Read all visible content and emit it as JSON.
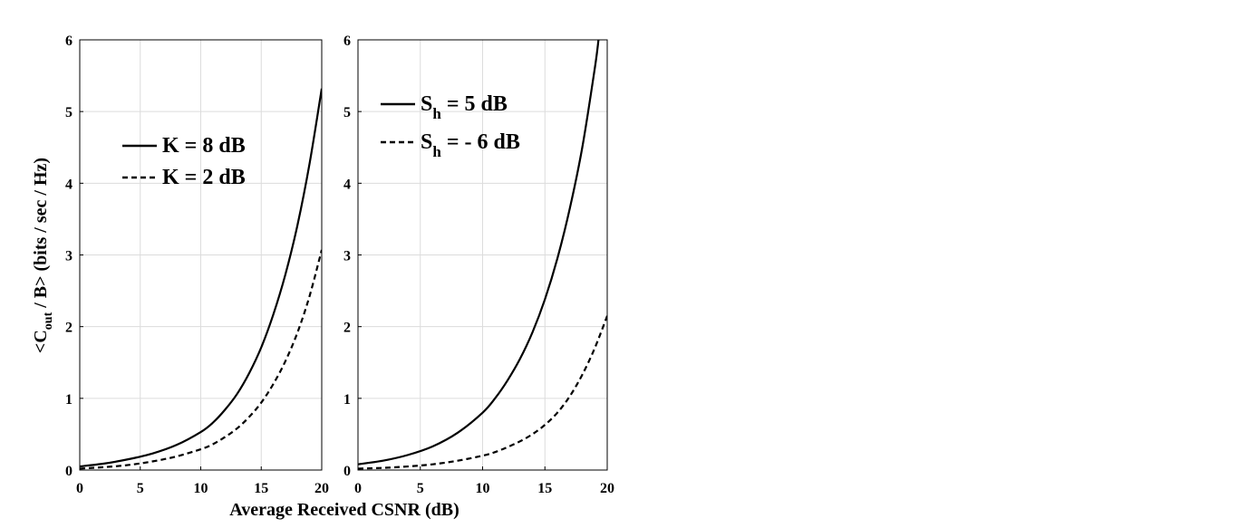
{
  "chart_data": [
    {
      "type": "line",
      "xlabel": "Average Received CSNR (dB)",
      "ylabel": {
        "prefix": "<C",
        "sub": "out",
        "suffix": " / B> (bits / sec / Hz)"
      },
      "xlim": [
        0,
        20
      ],
      "ylim": [
        0,
        6
      ],
      "xticks": [
        "0",
        "5",
        "10",
        "15",
        "20"
      ],
      "yticks": [
        "0",
        "1",
        "2",
        "3",
        "4",
        "5",
        "6"
      ],
      "grid": true,
      "legend_position": "upper-left",
      "series": [
        {
          "name": {
            "main": "K = 8 dB",
            "sub": ""
          },
          "style": "solid",
          "color": "#000000",
          "x": [
            0,
            2,
            4,
            6,
            8,
            10,
            11,
            12,
            13,
            14,
            15,
            16,
            17,
            18,
            19,
            20
          ],
          "y": [
            0.05,
            0.09,
            0.15,
            0.23,
            0.35,
            0.53,
            0.66,
            0.84,
            1.06,
            1.35,
            1.71,
            2.17,
            2.73,
            3.42,
            4.28,
            5.32
          ]
        },
        {
          "name": {
            "main": "K = 2 dB",
            "sub": ""
          },
          "style": "dashed",
          "color": "#000000",
          "x": [
            0,
            2,
            4,
            6,
            8,
            10,
            11,
            12,
            13,
            14,
            15,
            16,
            17,
            18,
            19,
            20
          ],
          "y": [
            0.02,
            0.04,
            0.07,
            0.12,
            0.19,
            0.29,
            0.36,
            0.46,
            0.58,
            0.74,
            0.94,
            1.2,
            1.52,
            1.92,
            2.43,
            3.07
          ]
        }
      ]
    },
    {
      "type": "line",
      "xlabel": "",
      "xlim": [
        0,
        20
      ],
      "ylim": [
        0,
        6
      ],
      "xticks": [
        "0",
        "5",
        "10",
        "15",
        "20"
      ],
      "yticks": [
        "0",
        "1",
        "2",
        "3",
        "4",
        "5",
        "6"
      ],
      "grid": true,
      "legend_position": "upper-left",
      "series": [
        {
          "name": {
            "main": "S",
            "sub": "h",
            "rest": " = 5 dB"
          },
          "style": "solid",
          "color": "#000000",
          "x": [
            0,
            2,
            4,
            6,
            8,
            10,
            11,
            12,
            13,
            14,
            15,
            16,
            17,
            18,
            19,
            19.3
          ],
          "y": [
            0.08,
            0.13,
            0.21,
            0.33,
            0.52,
            0.8,
            1.0,
            1.25,
            1.55,
            1.92,
            2.38,
            2.95,
            3.65,
            4.5,
            5.6,
            6.0
          ]
        },
        {
          "name": {
            "main": "S",
            "sub": "h",
            "rest": " = - 6 dB"
          },
          "style": "dashed",
          "color": "#000000",
          "x": [
            0,
            2,
            4,
            6,
            8,
            10,
            11,
            12,
            13,
            14,
            15,
            16,
            17,
            18,
            19,
            20
          ],
          "y": [
            0.02,
            0.03,
            0.05,
            0.08,
            0.13,
            0.2,
            0.25,
            0.32,
            0.4,
            0.5,
            0.63,
            0.8,
            1.03,
            1.33,
            1.7,
            2.15
          ]
        }
      ]
    }
  ]
}
